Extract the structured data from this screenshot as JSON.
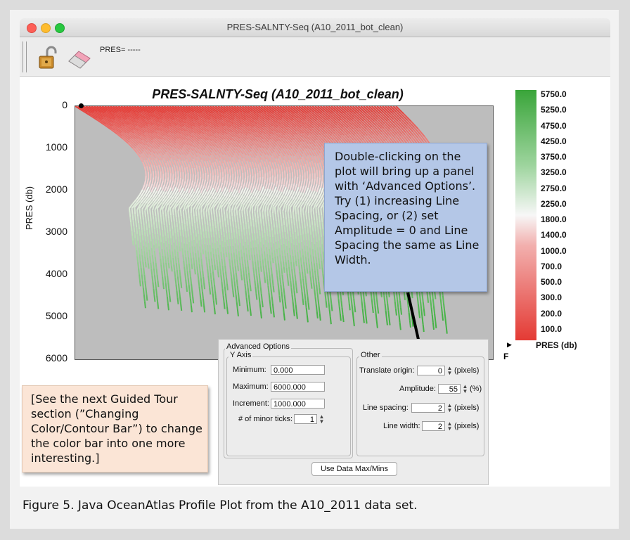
{
  "window": {
    "title": "PRES-SALNTY-Seq (A10_2011_bot_clean)",
    "pres_readout": "PRES= -----"
  },
  "toolbar": {
    "icons": [
      "unlock-icon",
      "eraser-icon"
    ]
  },
  "plot": {
    "title": "PRES-SALNTY-Seq (A10_2011_bot_clean)",
    "ylabel": "PRES (db)",
    "yticks": [
      "0",
      "1000",
      "2000",
      "3000",
      "4000",
      "5000",
      "6000"
    ],
    "ylim": [
      0,
      6000
    ]
  },
  "colorbar": {
    "title": "PRES (db)",
    "labels": [
      "5750.0",
      "5250.0",
      "4750.0",
      "4250.0",
      "3750.0",
      "3250.0",
      "2750.0",
      "2250.0",
      "1800.0",
      "1400.0",
      "1000.0",
      "700.0",
      "500.0",
      "300.0",
      "200.0",
      "100.0"
    ],
    "colors": {
      "deep": "#3aa53a",
      "mid": "#f7f7f7",
      "shallow": "#e43a34"
    },
    "f_label": "F"
  },
  "callouts": {
    "blue": "Double-clicking on the plot will bring up a panel with ‘Advanced Options’. Try (1) increasing Line Spacing, or (2) set Amplitude = 0 and Line Spacing the same as Line Width.",
    "tan": "[See the next Guided Tour section (”Changing Color/Contour Bar”) to change the color bar into one more interesting.]"
  },
  "advanced_options": {
    "title": "Advanced Options",
    "y_axis": {
      "title": "Y Axis",
      "minimum_label": "Minimum:",
      "minimum_value": "0.000",
      "maximum_label": "Maximum:",
      "maximum_value": "6000.000",
      "increment_label": "Increment:",
      "increment_value": "1000.000",
      "minor_ticks_label": "# of minor ticks:",
      "minor_ticks_value": "1"
    },
    "other": {
      "title": "Other",
      "translate_label": "Translate origin:",
      "translate_value": "0",
      "translate_unit": "(pixels)",
      "amplitude_label": "Amplitude:",
      "amplitude_value": "55",
      "amplitude_unit": "(%)",
      "spacing_label": "Line spacing:",
      "spacing_value": "2",
      "spacing_unit": "(pixels)",
      "width_label": "Line width:",
      "width_value": "2",
      "width_unit": "(pixels)"
    },
    "button": "Use Data Max/Mins"
  },
  "caption": "Figure 5. Java OceanAtlas Profile Plot from the A10_2011 data set."
}
